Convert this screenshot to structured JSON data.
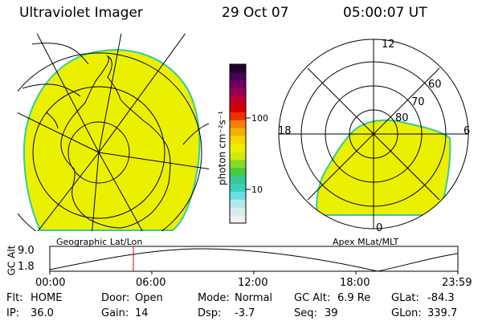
{
  "header": {
    "instrument": "Ultraviolet Imager",
    "date": "29 Oct 07",
    "time": "05:00:07 UT"
  },
  "colorbar": {
    "unit_label": "photon cm⁻²s⁻¹",
    "tick_100": "100",
    "tick_10": "10",
    "colors": [
      "#f0f0f0",
      "#d8ecf0",
      "#b4e6ee",
      "#66e0e0",
      "#3ad2bc",
      "#3ac890",
      "#44cc44",
      "#88dc22",
      "#ccec11",
      "#eef000",
      "#f4d800",
      "#f8b000",
      "#f48000",
      "#ee3000",
      "#d40000",
      "#c00030",
      "#9a0050",
      "#700060",
      "#4a0050",
      "#20002a"
    ]
  },
  "geo_panel": {
    "label": "Geographic Lat/Lon",
    "fill_color": "#ebf000",
    "edge_color": "#33cc99"
  },
  "polar_panel": {
    "label": "Apex MLat/MLT",
    "mlt_12": "12",
    "mlt_18": "18",
    "mlt_6": "6",
    "mlt_0": "0",
    "lat_60": "60",
    "lat_70": "70",
    "lat_80": "80"
  },
  "altitude_plot": {
    "ylabel": "GC Alt",
    "y_high": "9.0",
    "y_low": "1.8",
    "x_ticks": [
      "00:00",
      "06:00",
      "12:00",
      "18:00",
      "23:59"
    ],
    "current_time_color": "#dd0000"
  },
  "status": {
    "flt_label": "Flt:",
    "flt_value": "HOME",
    "ip_label": "IP:",
    "ip_value": "36.0",
    "door_label": "Door:",
    "door_value": "Open",
    "gain_label": "Gain:",
    "gain_value": "14",
    "mode_label": "Mode:",
    "mode_value": "Normal",
    "dsp_label": "Dsp:",
    "dsp_value": "-3.7",
    "gcalt_label": "GC Alt:",
    "gcalt_value": "6.9 Re",
    "seq_label": "Seq:",
    "seq_value": "39",
    "glat_label": "GLat:",
    "glat_value": "-84.3",
    "glon_label": "GLon:",
    "glon_value": "339.7"
  }
}
